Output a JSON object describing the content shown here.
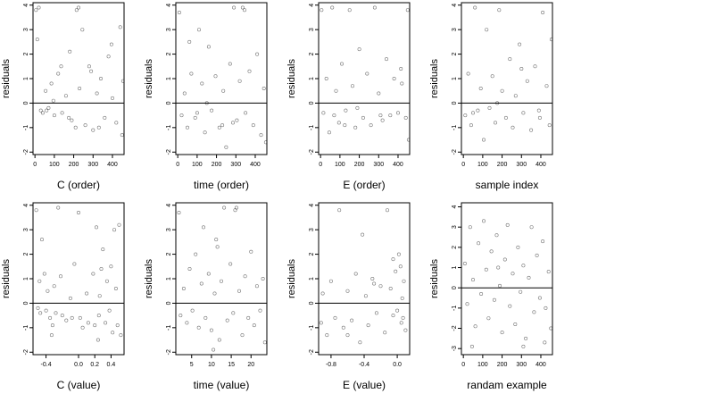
{
  "chart_data": [
    {
      "type": "scatter",
      "xlabel": "C (order)",
      "ylabel": "residuals",
      "xlim": [
        -10,
        460
      ],
      "ylim": [
        -2.1,
        4.1
      ],
      "xticks": [
        0,
        100,
        200,
        300,
        400
      ],
      "yticks": [
        -2,
        -1,
        0,
        1,
        2,
        3,
        4
      ],
      "zero_line": true,
      "points": [
        [
          5,
          3.8
        ],
        [
          12,
          2.6
        ],
        [
          20,
          3.9
        ],
        [
          30,
          -0.3
        ],
        [
          40,
          -0.4
        ],
        [
          55,
          0.5
        ],
        [
          70,
          -0.2
        ],
        [
          85,
          0.8
        ],
        [
          100,
          -0.5
        ],
        [
          120,
          1.2
        ],
        [
          140,
          -0.4
        ],
        [
          160,
          0.3
        ],
        [
          180,
          2.1
        ],
        [
          190,
          -0.7
        ],
        [
          210,
          -1.0
        ],
        [
          230,
          0.6
        ],
        [
          245,
          3.0
        ],
        [
          260,
          -0.9
        ],
        [
          280,
          1.5
        ],
        [
          300,
          -1.1
        ],
        [
          320,
          0.4
        ],
        [
          340,
          1.0
        ],
        [
          360,
          -0.6
        ],
        [
          380,
          1.9
        ],
        [
          400,
          0.2
        ],
        [
          420,
          -0.8
        ],
        [
          440,
          3.1
        ],
        [
          450,
          -1.3
        ],
        [
          455,
          0.9
        ],
        [
          135,
          1.5
        ],
        [
          175,
          -0.6
        ],
        [
          215,
          3.8
        ],
        [
          225,
          3.9
        ],
        [
          60,
          -0.3
        ],
        [
          95,
          0.1
        ],
        [
          330,
          -1.0
        ],
        [
          395,
          2.4
        ],
        [
          290,
          1.3
        ]
      ]
    },
    {
      "type": "scatter",
      "xlabel": "time (order)",
      "ylabel": "residuals",
      "xlim": [
        -10,
        460
      ],
      "ylim": [
        -2.1,
        4.1
      ],
      "xticks": [
        0,
        100,
        200,
        300,
        400
      ],
      "yticks": [
        -2,
        -1,
        0,
        1,
        2,
        3,
        4
      ],
      "zero_line": true,
      "points": [
        [
          8,
          3.7
        ],
        [
          20,
          -0.5
        ],
        [
          35,
          0.4
        ],
        [
          50,
          -1.0
        ],
        [
          70,
          1.2
        ],
        [
          90,
          -0.6
        ],
        [
          110,
          3.0
        ],
        [
          125,
          0.8
        ],
        [
          140,
          -1.2
        ],
        [
          160,
          2.3
        ],
        [
          175,
          -0.3
        ],
        [
          195,
          1.1
        ],
        [
          215,
          -1.0
        ],
        [
          235,
          0.5
        ],
        [
          250,
          -1.8
        ],
        [
          270,
          1.6
        ],
        [
          290,
          3.9
        ],
        [
          305,
          -0.7
        ],
        [
          320,
          0.9
        ],
        [
          335,
          3.9
        ],
        [
          350,
          -0.4
        ],
        [
          370,
          1.3
        ],
        [
          390,
          -0.9
        ],
        [
          410,
          2.0
        ],
        [
          430,
          -1.3
        ],
        [
          445,
          0.6
        ],
        [
          455,
          -1.6
        ],
        [
          60,
          2.5
        ],
        [
          150,
          0.0
        ],
        [
          230,
          -0.9
        ],
        [
          345,
          3.8
        ],
        [
          100,
          -0.4
        ],
        [
          285,
          -0.8
        ]
      ]
    },
    {
      "type": "scatter",
      "xlabel": "E (order)",
      "ylabel": "residuals",
      "xlim": [
        -10,
        460
      ],
      "ylim": [
        -2.1,
        4.1
      ],
      "xticks": [
        0,
        100,
        200,
        300,
        400
      ],
      "yticks": [
        -2,
        -1,
        0,
        1,
        2,
        3,
        4
      ],
      "zero_line": true,
      "points": [
        [
          5,
          3.8
        ],
        [
          15,
          -0.4
        ],
        [
          30,
          1.0
        ],
        [
          45,
          -1.2
        ],
        [
          60,
          3.9
        ],
        [
          80,
          0.5
        ],
        [
          95,
          -0.8
        ],
        [
          110,
          1.6
        ],
        [
          130,
          -0.3
        ],
        [
          150,
          3.8
        ],
        [
          165,
          0.7
        ],
        [
          180,
          -1.0
        ],
        [
          200,
          2.2
        ],
        [
          220,
          -0.6
        ],
        [
          240,
          1.2
        ],
        [
          260,
          -0.9
        ],
        [
          280,
          3.9
        ],
        [
          300,
          0.4
        ],
        [
          320,
          -0.7
        ],
        [
          340,
          1.8
        ],
        [
          360,
          -0.5
        ],
        [
          380,
          1.0
        ],
        [
          400,
          -0.4
        ],
        [
          420,
          0.8
        ],
        [
          440,
          -0.6
        ],
        [
          450,
          3.8
        ],
        [
          455,
          -1.5
        ],
        [
          70,
          -0.5
        ],
        [
          190,
          -0.2
        ],
        [
          310,
          -0.5
        ],
        [
          415,
          1.4
        ],
        [
          125,
          -0.9
        ]
      ]
    },
    {
      "type": "scatter",
      "xlabel": "sample index",
      "ylabel": "residuals",
      "xlim": [
        -10,
        460
      ],
      "ylim": [
        -2.1,
        4.1
      ],
      "xticks": [
        0,
        100,
        200,
        300,
        400
      ],
      "yticks": [
        -2,
        -1,
        0,
        1,
        2,
        3,
        4
      ],
      "zero_line": true,
      "points": [
        [
          10,
          -0.5
        ],
        [
          25,
          1.2
        ],
        [
          40,
          -0.9
        ],
        [
          60,
          3.9
        ],
        [
          75,
          -0.3
        ],
        [
          90,
          0.6
        ],
        [
          105,
          -1.5
        ],
        [
          120,
          3.0
        ],
        [
          135,
          -0.2
        ],
        [
          150,
          1.1
        ],
        [
          165,
          -0.8
        ],
        [
          185,
          3.8
        ],
        [
          200,
          0.5
        ],
        [
          220,
          -0.6
        ],
        [
          240,
          1.8
        ],
        [
          255,
          -1.0
        ],
        [
          270,
          0.3
        ],
        [
          290,
          2.4
        ],
        [
          310,
          -0.4
        ],
        [
          330,
          0.9
        ],
        [
          350,
          -1.1
        ],
        [
          370,
          1.5
        ],
        [
          390,
          -0.3
        ],
        [
          410,
          3.7
        ],
        [
          430,
          0.7
        ],
        [
          445,
          -0.9
        ],
        [
          455,
          2.6
        ],
        [
          50,
          -0.4
        ],
        [
          175,
          0.0
        ],
        [
          300,
          1.4
        ],
        [
          395,
          -0.6
        ]
      ]
    },
    {
      "type": "scatter",
      "xlabel": "C (value)",
      "ylabel": "residuals",
      "xlim": [
        -0.56,
        0.56
      ],
      "ylim": [
        -2.1,
        4.1
      ],
      "xticks": [
        -0.4,
        0.0,
        0.2,
        0.4
      ],
      "xticklabels": [
        "-0.4",
        "0.0",
        "0.2",
        "0.4"
      ],
      "yticks": [
        -2,
        -1,
        0,
        1,
        2,
        3,
        4
      ],
      "zero_line": true,
      "points": [
        [
          -0.52,
          3.8
        ],
        [
          -0.5,
          -0.2
        ],
        [
          -0.48,
          0.9
        ],
        [
          -0.47,
          -0.4
        ],
        [
          -0.45,
          2.6
        ],
        [
          -0.42,
          1.2
        ],
        [
          -0.4,
          -0.3
        ],
        [
          -0.38,
          0.5
        ],
        [
          -0.35,
          -0.6
        ],
        [
          -0.33,
          -1.3
        ],
        [
          -0.3,
          0.7
        ],
        [
          -0.28,
          -0.4
        ],
        [
          -0.25,
          3.9
        ],
        [
          -0.22,
          1.1
        ],
        [
          -0.2,
          -0.5
        ],
        [
          -0.15,
          -0.7
        ],
        [
          -0.1,
          0.2
        ],
        [
          -0.08,
          -0.6
        ],
        [
          -0.05,
          1.6
        ],
        [
          0.0,
          3.7
        ],
        [
          0.02,
          -0.6
        ],
        [
          0.05,
          -1.0
        ],
        [
          0.1,
          0.4
        ],
        [
          0.12,
          -0.8
        ],
        [
          0.18,
          1.2
        ],
        [
          0.2,
          -0.9
        ],
        [
          0.22,
          3.1
        ],
        [
          0.25,
          -0.5
        ],
        [
          0.28,
          1.4
        ],
        [
          0.3,
          2.2
        ],
        [
          0.33,
          -0.8
        ],
        [
          0.35,
          0.9
        ],
        [
          0.38,
          -0.3
        ],
        [
          0.4,
          1.5
        ],
        [
          0.42,
          -1.2
        ],
        [
          0.44,
          3.0
        ],
        [
          0.46,
          0.6
        ],
        [
          0.48,
          -0.9
        ],
        [
          0.5,
          3.2
        ],
        [
          0.52,
          -1.3
        ],
        [
          0.24,
          -1.5
        ],
        [
          -0.32,
          -0.9
        ],
        [
          0.26,
          0.3
        ]
      ]
    },
    {
      "type": "scatter",
      "xlabel": "time (value)",
      "ylabel": "residuals",
      "xlim": [
        1,
        24
      ],
      "ylim": [
        -2.1,
        4.1
      ],
      "xticks": [
        5,
        10,
        15,
        20
      ],
      "yticks": [
        -2,
        -1,
        0,
        1,
        2,
        3,
        4
      ],
      "zero_line": true,
      "points": [
        [
          1.8,
          3.7
        ],
        [
          2.2,
          -0.5
        ],
        [
          3.0,
          0.6
        ],
        [
          3.8,
          -0.8
        ],
        [
          4.5,
          1.4
        ],
        [
          5.2,
          -0.3
        ],
        [
          6.0,
          2.0
        ],
        [
          6.8,
          -1.0
        ],
        [
          7.5,
          0.8
        ],
        [
          8.0,
          3.1
        ],
        [
          8.5,
          -0.6
        ],
        [
          9.3,
          1.2
        ],
        [
          10.0,
          -1.1
        ],
        [
          10.8,
          0.4
        ],
        [
          11.5,
          2.3
        ],
        [
          12.0,
          -1.5
        ],
        [
          12.5,
          0.9
        ],
        [
          13.2,
          3.9
        ],
        [
          14.0,
          -0.7
        ],
        [
          14.8,
          1.6
        ],
        [
          15.5,
          -0.4
        ],
        [
          16.3,
          3.9
        ],
        [
          17.0,
          0.5
        ],
        [
          17.8,
          -1.3
        ],
        [
          18.5,
          1.1
        ],
        [
          19.3,
          -0.6
        ],
        [
          20.0,
          2.1
        ],
        [
          20.8,
          -0.9
        ],
        [
          21.5,
          0.7
        ],
        [
          22.3,
          -0.3
        ],
        [
          23.0,
          1.0
        ],
        [
          23.5,
          -1.6
        ],
        [
          10.5,
          -1.9
        ],
        [
          11.2,
          2.6
        ],
        [
          16.0,
          3.8
        ]
      ]
    },
    {
      "type": "scatter",
      "xlabel": "E (value)",
      "ylabel": "residuals",
      "xlim": [
        -0.95,
        0.15
      ],
      "ylim": [
        -2.1,
        4.1
      ],
      "xticks": [
        -0.8,
        -0.4,
        0.0
      ],
      "xticklabels": [
        "-0.8",
        "-0.4",
        "0.0"
      ],
      "yticks": [
        -2,
        -1,
        0,
        1,
        2,
        3,
        4
      ],
      "zero_line": true,
      "points": [
        [
          -0.92,
          -0.8
        ],
        [
          -0.9,
          0.4
        ],
        [
          -0.85,
          -1.3
        ],
        [
          -0.8,
          0.9
        ],
        [
          -0.75,
          -0.6
        ],
        [
          -0.7,
          3.8
        ],
        [
          -0.65,
          -1.0
        ],
        [
          -0.6,
          0.5
        ],
        [
          -0.55,
          -0.7
        ],
        [
          -0.5,
          1.2
        ],
        [
          -0.45,
          -1.6
        ],
        [
          -0.42,
          2.8
        ],
        [
          -0.38,
          0.3
        ],
        [
          -0.35,
          -0.9
        ],
        [
          -0.3,
          1.0
        ],
        [
          -0.25,
          -0.4
        ],
        [
          -0.2,
          0.7
        ],
        [
          -0.15,
          -1.2
        ],
        [
          -0.12,
          3.8
        ],
        [
          -0.08,
          0.6
        ],
        [
          -0.05,
          -0.5
        ],
        [
          -0.02,
          1.3
        ],
        [
          0.02,
          2.0
        ],
        [
          0.05,
          -0.8
        ],
        [
          0.08,
          0.9
        ],
        [
          0.1,
          -1.1
        ],
        [
          -0.6,
          -1.3
        ],
        [
          -0.28,
          0.8
        ],
        [
          -0.05,
          1.8
        ],
        [
          0.0,
          -0.3
        ],
        [
          0.04,
          1.5
        ],
        [
          0.06,
          0.2
        ],
        [
          0.07,
          -0.6
        ]
      ]
    },
    {
      "type": "scatter",
      "xlabel": "randam example",
      "ylabel": "residuals",
      "xlim": [
        -10,
        460
      ],
      "ylim": [
        -3.3,
        4.2
      ],
      "xticks": [
        0,
        100,
        200,
        300,
        400
      ],
      "yticks": [
        -3,
        -2,
        -1,
        0,
        1,
        2,
        3,
        4
      ],
      "zero_line": true,
      "points": [
        [
          8,
          1.2
        ],
        [
          20,
          -0.8
        ],
        [
          35,
          3.0
        ],
        [
          50,
          0.4
        ],
        [
          62,
          -1.9
        ],
        [
          78,
          2.2
        ],
        [
          92,
          -0.3
        ],
        [
          105,
          3.3
        ],
        [
          118,
          0.9
        ],
        [
          130,
          -1.5
        ],
        [
          145,
          1.8
        ],
        [
          160,
          -0.6
        ],
        [
          172,
          2.6
        ],
        [
          188,
          0.1
        ],
        [
          200,
          -2.2
        ],
        [
          215,
          1.4
        ],
        [
          228,
          3.1
        ],
        [
          240,
          -0.9
        ],
        [
          255,
          0.7
        ],
        [
          268,
          -1.8
        ],
        [
          282,
          2.0
        ],
        [
          295,
          -0.2
        ],
        [
          310,
          1.1
        ],
        [
          322,
          -2.5
        ],
        [
          338,
          0.5
        ],
        [
          352,
          3.0
        ],
        [
          365,
          -1.2
        ],
        [
          380,
          1.6
        ],
        [
          395,
          -0.5
        ],
        [
          410,
          2.3
        ],
        [
          425,
          -1.0
        ],
        [
          440,
          0.8
        ],
        [
          452,
          -2.0
        ],
        [
          45,
          -2.9
        ],
        [
          310,
          -2.9
        ],
        [
          180,
          1.0
        ],
        [
          420,
          -2.7
        ]
      ]
    }
  ]
}
